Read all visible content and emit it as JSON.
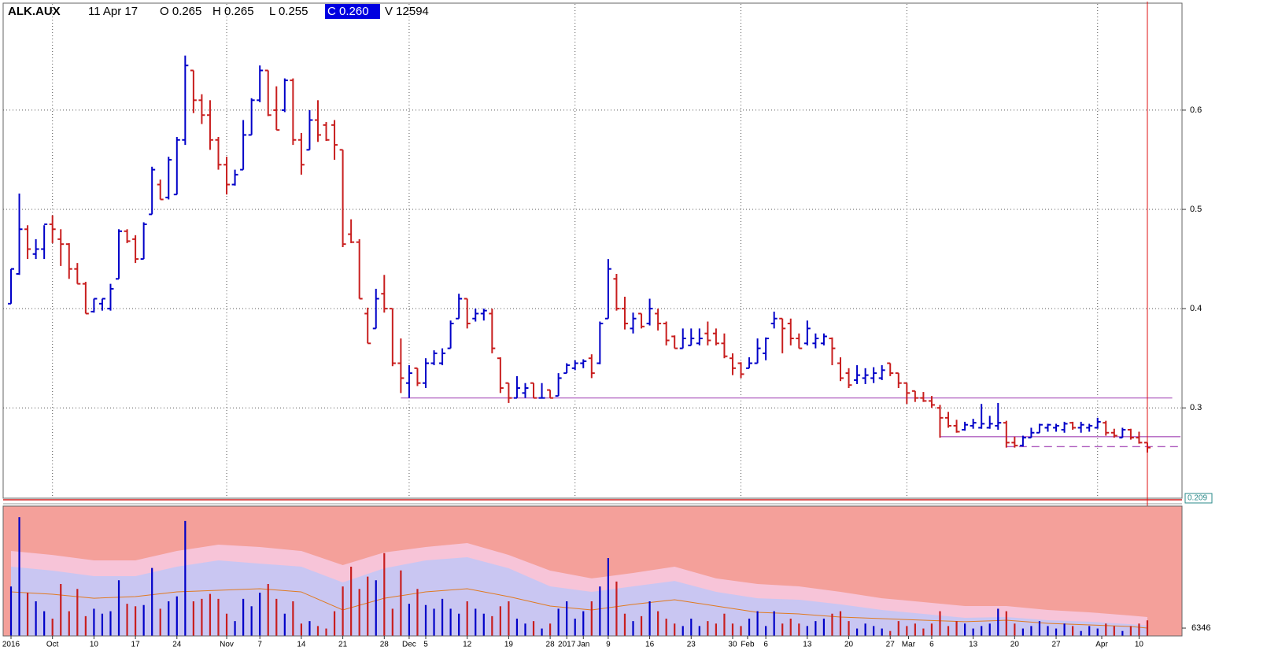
{
  "header": {
    "symbol": "ALK.AUX",
    "date": "11 Apr 17",
    "open": "O 0.265",
    "high": "H 0.265",
    "low": "L 0.255",
    "close": "C 0.260",
    "volume": "V 12594"
  },
  "chart_data": [
    {
      "type": "ohlc",
      "up_color": "#0000c8",
      "down_color": "#c81e1e",
      "ylim": [
        0.209,
        0.707
      ],
      "yticks": [
        0.3,
        0.4,
        0.5,
        0.6
      ],
      "xgrid": [
        5,
        26,
        48,
        68,
        88,
        108,
        131
      ],
      "grid": true,
      "cursor_index": 137,
      "hlines": [
        {
          "value": 0.31,
          "from": 47,
          "to": 140,
          "color": "#b060c0",
          "style": "solid"
        },
        {
          "value": 0.271,
          "from": 112,
          "to": 141,
          "color": "#b060c0",
          "style": "solid"
        },
        {
          "value": 0.261,
          "from": 120,
          "to": 141,
          "color": "#b060c0",
          "style": "dashed"
        }
      ],
      "ohlc": [
        [
          0.405,
          0.44,
          0.405,
          0.44
        ],
        [
          0.435,
          0.516,
          0.434,
          0.48
        ],
        [
          0.48,
          0.484,
          0.45,
          0.46
        ],
        [
          0.455,
          0.47,
          0.45,
          0.46
        ],
        [
          0.46,
          0.484,
          0.45,
          0.485
        ],
        [
          0.485,
          0.494,
          0.466,
          0.48
        ],
        [
          0.47,
          0.48,
          0.443,
          0.465
        ],
        [
          0.465,
          0.466,
          0.43,
          0.44
        ],
        [
          0.44,
          0.446,
          0.425,
          0.425
        ],
        [
          0.425,
          0.427,
          0.395,
          0.395
        ],
        [
          0.397,
          0.41,
          0.396,
          0.41
        ],
        [
          0.405,
          0.41,
          0.398,
          0.41
        ],
        [
          0.4,
          0.425,
          0.398,
          0.42
        ],
        [
          0.43,
          0.48,
          0.43,
          0.478
        ],
        [
          0.478,
          0.48,
          0.466,
          0.468
        ],
        [
          0.47,
          0.474,
          0.446,
          0.45
        ],
        [
          0.45,
          0.487,
          0.45,
          0.485
        ],
        [
          0.495,
          0.543,
          0.495,
          0.54
        ],
        [
          0.525,
          0.53,
          0.51,
          0.51
        ],
        [
          0.512,
          0.553,
          0.51,
          0.55
        ],
        [
          0.515,
          0.573,
          0.515,
          0.57
        ],
        [
          0.57,
          0.655,
          0.565,
          0.645
        ],
        [
          0.64,
          0.64,
          0.597,
          0.61
        ],
        [
          0.61,
          0.616,
          0.586,
          0.595
        ],
        [
          0.595,
          0.61,
          0.56,
          0.57
        ],
        [
          0.57,
          0.573,
          0.54,
          0.545
        ],
        [
          0.545,
          0.553,
          0.515,
          0.525
        ],
        [
          0.525,
          0.54,
          0.524,
          0.535
        ],
        [
          0.54,
          0.59,
          0.54,
          0.575
        ],
        [
          0.575,
          0.612,
          0.575,
          0.61
        ],
        [
          0.61,
          0.645,
          0.608,
          0.64
        ],
        [
          0.64,
          0.64,
          0.594,
          0.595
        ],
        [
          0.6,
          0.624,
          0.58,
          0.58
        ],
        [
          0.6,
          0.632,
          0.598,
          0.63
        ],
        [
          0.63,
          0.632,
          0.565,
          0.57
        ],
        [
          0.57,
          0.577,
          0.535,
          0.545
        ],
        [
          0.56,
          0.6,
          0.56,
          0.59
        ],
        [
          0.59,
          0.61,
          0.568,
          0.575
        ],
        [
          0.585,
          0.588,
          0.569,
          0.57
        ],
        [
          0.585,
          0.59,
          0.55,
          0.565
        ],
        [
          0.56,
          0.56,
          0.462,
          0.465
        ],
        [
          0.475,
          0.49,
          0.466,
          0.467
        ],
        [
          0.467,
          0.47,
          0.41,
          0.41
        ],
        [
          0.395,
          0.401,
          0.365,
          0.365
        ],
        [
          0.38,
          0.42,
          0.38,
          0.41
        ],
        [
          0.415,
          0.434,
          0.396,
          0.4
        ],
        [
          0.4,
          0.4,
          0.342,
          0.345
        ],
        [
          0.345,
          0.37,
          0.315,
          0.33
        ],
        [
          0.325,
          0.343,
          0.31,
          0.335
        ],
        [
          0.34,
          0.34,
          0.322,
          0.325
        ],
        [
          0.325,
          0.35,
          0.32,
          0.345
        ],
        [
          0.345,
          0.358,
          0.343,
          0.355
        ],
        [
          0.345,
          0.36,
          0.343,
          0.355
        ],
        [
          0.36,
          0.388,
          0.36,
          0.385
        ],
        [
          0.39,
          0.415,
          0.39,
          0.41
        ],
        [
          0.41,
          0.41,
          0.38,
          0.385
        ],
        [
          0.39,
          0.4,
          0.387,
          0.395
        ],
        [
          0.395,
          0.4,
          0.388,
          0.398
        ],
        [
          0.395,
          0.4,
          0.355,
          0.36
        ],
        [
          0.35,
          0.351,
          0.315,
          0.32
        ],
        [
          0.325,
          0.325,
          0.305,
          0.31
        ],
        [
          0.31,
          0.332,
          0.31,
          0.32
        ],
        [
          0.315,
          0.325,
          0.31,
          0.32
        ],
        [
          0.325,
          0.325,
          0.31,
          0.31
        ],
        [
          0.31,
          0.325,
          0.31,
          0.31
        ],
        [
          0.318,
          0.318,
          0.31,
          0.31
        ],
        [
          0.312,
          0.335,
          0.312,
          0.33
        ],
        [
          0.335,
          0.345,
          0.335,
          0.343
        ],
        [
          0.34,
          0.348,
          0.338,
          0.345
        ],
        [
          0.345,
          0.349,
          0.34,
          0.347
        ],
        [
          0.35,
          0.354,
          0.33,
          0.335
        ],
        [
          0.345,
          0.387,
          0.344,
          0.385
        ],
        [
          0.39,
          0.45,
          0.39,
          0.44
        ],
        [
          0.43,
          0.435,
          0.398,
          0.4
        ],
        [
          0.4,
          0.412,
          0.379,
          0.385
        ],
        [
          0.38,
          0.396,
          0.375,
          0.39
        ],
        [
          0.395,
          0.395,
          0.38,
          0.382
        ],
        [
          0.385,
          0.41,
          0.383,
          0.4
        ],
        [
          0.395,
          0.4,
          0.378,
          0.385
        ],
        [
          0.385,
          0.387,
          0.363,
          0.368
        ],
        [
          0.372,
          0.373,
          0.36,
          0.36
        ],
        [
          0.36,
          0.38,
          0.36,
          0.37
        ],
        [
          0.363,
          0.38,
          0.363,
          0.37
        ],
        [
          0.365,
          0.38,
          0.363,
          0.37
        ],
        [
          0.375,
          0.387,
          0.363,
          0.368
        ],
        [
          0.375,
          0.38,
          0.363,
          0.365
        ],
        [
          0.365,
          0.375,
          0.35,
          0.352
        ],
        [
          0.35,
          0.355,
          0.333,
          0.34
        ],
        [
          0.345,
          0.346,
          0.33,
          0.334
        ],
        [
          0.34,
          0.351,
          0.34,
          0.345
        ],
        [
          0.345,
          0.37,
          0.345,
          0.36
        ],
        [
          0.355,
          0.371,
          0.348,
          0.37
        ],
        [
          0.385,
          0.397,
          0.38,
          0.39
        ],
        [
          0.39,
          0.39,
          0.355,
          0.38
        ],
        [
          0.385,
          0.39,
          0.363,
          0.37
        ],
        [
          0.37,
          0.375,
          0.36,
          0.36
        ],
        [
          0.365,
          0.388,
          0.363,
          0.38
        ],
        [
          0.365,
          0.375,
          0.36,
          0.37
        ],
        [
          0.365,
          0.375,
          0.363,
          0.372
        ],
        [
          0.37,
          0.371,
          0.343,
          0.36
        ],
        [
          0.345,
          0.351,
          0.327,
          0.33
        ],
        [
          0.335,
          0.34,
          0.32,
          0.323
        ],
        [
          0.328,
          0.343,
          0.324,
          0.333
        ],
        [
          0.33,
          0.34,
          0.324,
          0.333
        ],
        [
          0.33,
          0.341,
          0.325,
          0.335
        ],
        [
          0.33,
          0.343,
          0.328,
          0.338
        ],
        [
          0.345,
          0.345,
          0.332,
          0.335
        ],
        [
          0.335,
          0.335,
          0.32,
          0.325
        ],
        [
          0.325,
          0.325,
          0.304,
          0.315
        ],
        [
          0.317,
          0.317,
          0.306,
          0.31
        ],
        [
          0.31,
          0.316,
          0.306,
          0.307
        ],
        [
          0.307,
          0.312,
          0.3,
          0.303
        ],
        [
          0.3,
          0.303,
          0.27,
          0.29
        ],
        [
          0.29,
          0.296,
          0.28,
          0.282
        ],
        [
          0.282,
          0.288,
          0.275,
          0.276
        ],
        [
          0.278,
          0.286,
          0.277,
          0.283
        ],
        [
          0.282,
          0.289,
          0.279,
          0.285
        ],
        [
          0.28,
          0.304,
          0.279,
          0.284
        ],
        [
          0.28,
          0.292,
          0.279,
          0.284
        ],
        [
          0.282,
          0.305,
          0.278,
          0.285
        ],
        [
          0.285,
          0.287,
          0.26,
          0.265
        ],
        [
          0.265,
          0.271,
          0.26,
          0.262
        ],
        [
          0.262,
          0.272,
          0.261,
          0.27
        ],
        [
          0.27,
          0.28,
          0.27,
          0.275
        ],
        [
          0.275,
          0.284,
          0.275,
          0.283
        ],
        [
          0.28,
          0.284,
          0.276,
          0.283
        ],
        [
          0.28,
          0.284,
          0.276,
          0.282
        ],
        [
          0.278,
          0.286,
          0.275,
          0.284
        ],
        [
          0.285,
          0.286,
          0.278,
          0.28
        ],
        [
          0.28,
          0.286,
          0.275,
          0.283
        ],
        [
          0.28,
          0.284,
          0.276,
          0.282
        ],
        [
          0.28,
          0.29,
          0.279,
          0.286
        ],
        [
          0.285,
          0.287,
          0.272,
          0.275
        ],
        [
          0.275,
          0.279,
          0.27,
          0.272
        ],
        [
          0.27,
          0.28,
          0.27,
          0.278
        ],
        [
          0.278,
          0.279,
          0.268,
          0.27
        ],
        [
          0.27,
          0.276,
          0.264,
          0.265
        ],
        [
          0.265,
          0.265,
          0.255,
          0.26
        ]
      ]
    },
    {
      "type": "volume",
      "background": "#f4a09a",
      "ylim": [
        0,
        105000
      ],
      "yticks": [
        6346
      ],
      "values": [
        40000,
        96000,
        35000,
        28000,
        20000,
        14000,
        42000,
        20000,
        38000,
        16000,
        22000,
        18000,
        20000,
        45000,
        26000,
        24000,
        25000,
        55000,
        22000,
        28000,
        32000,
        93000,
        28000,
        30000,
        34000,
        30000,
        18000,
        12000,
        30000,
        24000,
        35000,
        42000,
        30000,
        18000,
        28000,
        10000,
        12000,
        8000,
        6000,
        20000,
        40000,
        56000,
        38000,
        48000,
        45000,
        67000,
        22000,
        53000,
        26000,
        38000,
        25000,
        22000,
        30000,
        22000,
        18000,
        28000,
        22000,
        18000,
        16000,
        24000,
        28000,
        14000,
        10000,
        12000,
        6000,
        10000,
        22000,
        28000,
        14000,
        20000,
        28000,
        40000,
        63000,
        44000,
        18000,
        12000,
        16000,
        28000,
        20000,
        14000,
        10000,
        8000,
        14000,
        8000,
        12000,
        10000,
        18000,
        10000,
        8000,
        14000,
        20000,
        8000,
        20000,
        10000,
        14000,
        10000,
        8000,
        12000,
        14000,
        18000,
        20000,
        12000,
        6000,
        10000,
        8000,
        6000,
        4000,
        12000,
        8000,
        10000,
        6000,
        10000,
        20000,
        8000,
        12000,
        10000,
        6000,
        8000,
        10000,
        22000,
        20000,
        10000,
        6000,
        8000,
        12000,
        8000,
        6000,
        10000,
        8000,
        4000,
        8000,
        6000,
        10000,
        8000,
        4000,
        8000,
        10000,
        12594
      ],
      "band_x": [
        0,
        5,
        10,
        15,
        20,
        25,
        30,
        35,
        40,
        45,
        50,
        55,
        60,
        65,
        70,
        75,
        80,
        85,
        90,
        95,
        100,
        105,
        110,
        115,
        120,
        125,
        130,
        135,
        137
      ],
      "bands": [
        {
          "color": "#f7c4d8",
          "values": [
            68700,
            65500,
            61100,
            61100,
            68700,
            73800,
            71900,
            68700,
            57300,
            67500,
            71900,
            75100,
            65500,
            52800,
            46500,
            50900,
            56000,
            46500,
            42000,
            40100,
            35600,
            30500,
            27400,
            24200,
            24200,
            21000,
            19100,
            16500,
            15300
          ]
        },
        {
          "color": "#c9c6f2",
          "values": [
            56000,
            52800,
            48400,
            48400,
            56000,
            61100,
            58500,
            56000,
            43300,
            54700,
            61100,
            63600,
            54700,
            40100,
            35600,
            40100,
            44500,
            35600,
            30500,
            29300,
            25500,
            21000,
            17800,
            14600,
            15300,
            12700,
            11500,
            9500,
            8300
          ]
        }
      ],
      "ma": {
        "color": "#e07a20",
        "values": [
          35600,
          33700,
          30500,
          31800,
          35600,
          36900,
          38200,
          35600,
          21000,
          30500,
          35600,
          38200,
          31800,
          24200,
          21000,
          25500,
          29300,
          24200,
          19100,
          17800,
          15300,
          14000,
          12700,
          11500,
          12700,
          10200,
          8900,
          7600,
          6346
        ]
      },
      "xticks": [
        {
          "value": 0,
          "label": "2016"
        },
        {
          "value": 5,
          "label": "Oct"
        },
        {
          "value": 10,
          "label": "10"
        },
        {
          "value": 15,
          "label": "17"
        },
        {
          "value": 20,
          "label": "24"
        },
        {
          "value": 26,
          "label": "Nov"
        },
        {
          "value": 30,
          "label": "7"
        },
        {
          "value": 35,
          "label": "14"
        },
        {
          "value": 40,
          "label": "21"
        },
        {
          "value": 45,
          "label": "28"
        },
        {
          "value": 48,
          "label": "Dec"
        },
        {
          "value": 50,
          "label": "5"
        },
        {
          "value": 55,
          "label": "12"
        },
        {
          "value": 60,
          "label": "19"
        },
        {
          "value": 65,
          "label": "28"
        },
        {
          "value": 67,
          "label": "2017"
        },
        {
          "value": 69,
          "label": "Jan"
        },
        {
          "value": 72,
          "label": "9"
        },
        {
          "value": 77,
          "label": "16"
        },
        {
          "value": 82,
          "label": "23"
        },
        {
          "value": 87,
          "label": "30"
        },
        {
          "value": 88.8,
          "label": "Feb"
        },
        {
          "value": 91,
          "label": "6"
        },
        {
          "value": 96,
          "label": "13"
        },
        {
          "value": 101,
          "label": "20"
        },
        {
          "value": 106,
          "label": "27"
        },
        {
          "value": 108.2,
          "label": "Mar"
        },
        {
          "value": 111,
          "label": "6"
        },
        {
          "value": 116,
          "label": "13"
        },
        {
          "value": 121,
          "label": "20"
        },
        {
          "value": 126,
          "label": "27"
        },
        {
          "value": 131.5,
          "label": "Apr"
        },
        {
          "value": 136,
          "label": "10"
        }
      ]
    }
  ]
}
